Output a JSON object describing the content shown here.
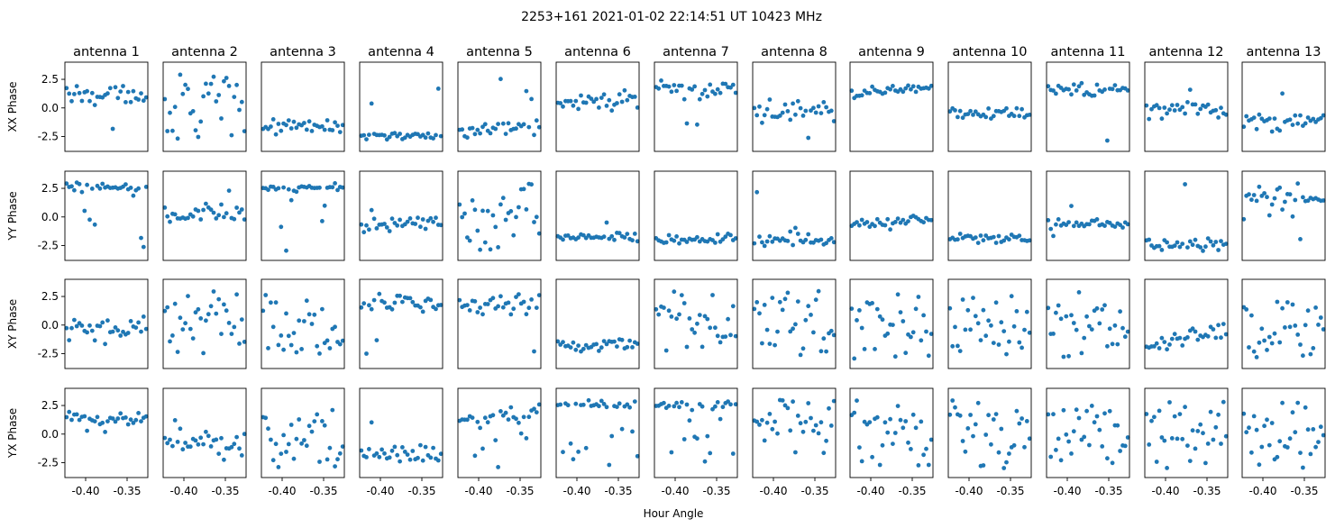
{
  "figure": {
    "title": "2253+161  2021-01-02 22:14:51 UT  10423 MHz",
    "xlabel": "Hour Angle"
  },
  "chart_data": {
    "type": "scatter",
    "x_range": [
      -0.425,
      -0.325
    ],
    "ylim": [
      -3.8,
      4.0
    ],
    "yticks": [
      2.5,
      0.0,
      -2.5
    ],
    "ytick_labels": [
      "2.5",
      "0.0",
      "-2.5"
    ],
    "xticks": [
      -0.4,
      -0.35
    ],
    "xtick_labels": [
      "-0.40",
      "-0.35"
    ],
    "marker_color": "#1f77b4",
    "n_points": 32,
    "columns": [
      "antenna 1",
      "antenna 2",
      "antenna 3",
      "antenna 4",
      "antenna 5",
      "antenna 6",
      "antenna 7",
      "antenna 8",
      "antenna 9",
      "antenna 10",
      "antenna 11",
      "antenna 12",
      "antenna 13"
    ],
    "rows": [
      "XX Phase",
      "YY Phase",
      "XY Phase",
      "YX Phase"
    ],
    "panels": [
      [
        {
          "center": 1.2,
          "noise": 0.7,
          "outliers": 0.05,
          "slope": 0
        },
        {
          "center": 0.0,
          "noise": 2.7,
          "outliers": 0.0,
          "slope": 0
        },
        {
          "center": -1.7,
          "noise": 0.6,
          "outliers": 0.0,
          "slope": 0
        },
        {
          "center": -2.4,
          "noise": 0.3,
          "outliers": 0.12,
          "slope": 0
        },
        {
          "center": -1.9,
          "noise": 0.7,
          "outliers": 0.05,
          "slope": 0
        },
        {
          "center": 0.6,
          "noise": 0.6,
          "outliers": 0.0,
          "slope": 0.4
        },
        {
          "center": 1.7,
          "noise": 0.7,
          "outliers": 0.1,
          "slope": 0
        },
        {
          "center": -0.3,
          "noise": 0.8,
          "outliers": 0.08,
          "slope": 0
        },
        {
          "center": 1.5,
          "noise": 0.4,
          "outliers": 0.0,
          "slope": 0.3
        },
        {
          "center": -0.5,
          "noise": 0.4,
          "outliers": 0.0,
          "slope": 0
        },
        {
          "center": 1.6,
          "noise": 0.5,
          "outliers": 0.08,
          "slope": 0
        },
        {
          "center": -0.2,
          "noise": 0.6,
          "outliers": 0.1,
          "slope": 0
        },
        {
          "center": -1.2,
          "noise": 0.6,
          "outliers": 0.1,
          "slope": 0.4
        }
      ],
      [
        {
          "center": 2.6,
          "noise": 0.3,
          "outliers": 0.2,
          "slope": 0
        },
        {
          "center": 0.2,
          "noise": 0.7,
          "outliers": 0.05,
          "slope": 0.4
        },
        {
          "center": 2.5,
          "noise": 0.4,
          "outliers": 0.2,
          "slope": 0
        },
        {
          "center": -0.6,
          "noise": 0.5,
          "outliers": 0.03,
          "slope": 0.3
        },
        {
          "center": 0.0,
          "noise": 2.7,
          "outliers": 0.0,
          "slope": 0
        },
        {
          "center": -1.8,
          "noise": 0.3,
          "outliers": 0.06,
          "slope": 0
        },
        {
          "center": -1.9,
          "noise": 0.4,
          "outliers": 0.03,
          "slope": 0.3
        },
        {
          "center": -2.0,
          "noise": 0.5,
          "outliers": 0.1,
          "slope": 0
        },
        {
          "center": -0.4,
          "noise": 0.35,
          "outliers": 0.03,
          "slope": 0.4
        },
        {
          "center": -1.8,
          "noise": 0.35,
          "outliers": 0.0,
          "slope": 0
        },
        {
          "center": -0.6,
          "noise": 0.35,
          "outliers": 0.03,
          "slope": 0
        },
        {
          "center": -2.4,
          "noise": 0.5,
          "outliers": 0.15,
          "slope": 0.3
        },
        {
          "center": 1.6,
          "noise": 0.7,
          "outliers": 0.1,
          "slope": -0.5
        }
      ],
      [
        {
          "center": -0.4,
          "noise": 0.8,
          "outliers": 0.05,
          "slope": 0
        },
        {
          "center": 0.0,
          "noise": 2.5,
          "outliers": 0.0,
          "slope": 0
        },
        {
          "center": 0.5,
          "noise": 2.6,
          "outliers": 0.0,
          "slope": 0
        },
        {
          "center": 1.9,
          "noise": 0.5,
          "outliers": 0.12,
          "slope": 0
        },
        {
          "center": 1.6,
          "noise": 1.0,
          "outliers": 0.1,
          "slope": 0
        },
        {
          "center": -1.7,
          "noise": 0.4,
          "outliers": 0.0,
          "slope": 0
        },
        {
          "center": 0.0,
          "noise": 2.3,
          "outliers": 0.0,
          "slope": 0
        },
        {
          "center": 0.0,
          "noise": 2.5,
          "outliers": 0.0,
          "slope": 0
        },
        {
          "center": 0.0,
          "noise": 2.6,
          "outliers": 0.0,
          "slope": 0
        },
        {
          "center": 0.0,
          "noise": 2.4,
          "outliers": 0.0,
          "slope": 0
        },
        {
          "center": 0.0,
          "noise": 2.6,
          "outliers": 0.0,
          "slope": 0
        },
        {
          "center": -1.2,
          "noise": 0.6,
          "outliers": 0.1,
          "slope": 1.5
        },
        {
          "center": 0.0,
          "noise": 2.6,
          "outliers": 0.0,
          "slope": 0
        }
      ],
      [
        {
          "center": 1.2,
          "noise": 0.6,
          "outliers": 0.03,
          "slope": 0
        },
        {
          "center": -0.8,
          "noise": 0.8,
          "outliers": 0.15,
          "slope": 0
        },
        {
          "center": 0.0,
          "noise": 2.5,
          "outliers": 0.0,
          "slope": 0
        },
        {
          "center": -1.9,
          "noise": 0.6,
          "outliers": 0.1,
          "slope": 0
        },
        {
          "center": 1.6,
          "noise": 0.6,
          "outliers": 0.15,
          "slope": 0.5
        },
        {
          "center": 2.6,
          "noise": 0.3,
          "outliers": 0.35,
          "slope": 0
        },
        {
          "center": 2.5,
          "noise": 0.3,
          "outliers": 0.3,
          "slope": 0
        },
        {
          "center": 1.2,
          "noise": 1.5,
          "outliers": 0.2,
          "slope": 0
        },
        {
          "center": 0.0,
          "noise": 2.6,
          "outliers": 0.0,
          "slope": 0
        },
        {
          "center": 0.0,
          "noise": 2.5,
          "outliers": 0.0,
          "slope": 0
        },
        {
          "center": 0.0,
          "noise": 2.6,
          "outliers": 0.0,
          "slope": 0
        },
        {
          "center": 0.0,
          "noise": 2.5,
          "outliers": 0.0,
          "slope": 0
        },
        {
          "center": 0.0,
          "noise": 2.6,
          "outliers": 0.0,
          "slope": 0
        }
      ]
    ]
  }
}
